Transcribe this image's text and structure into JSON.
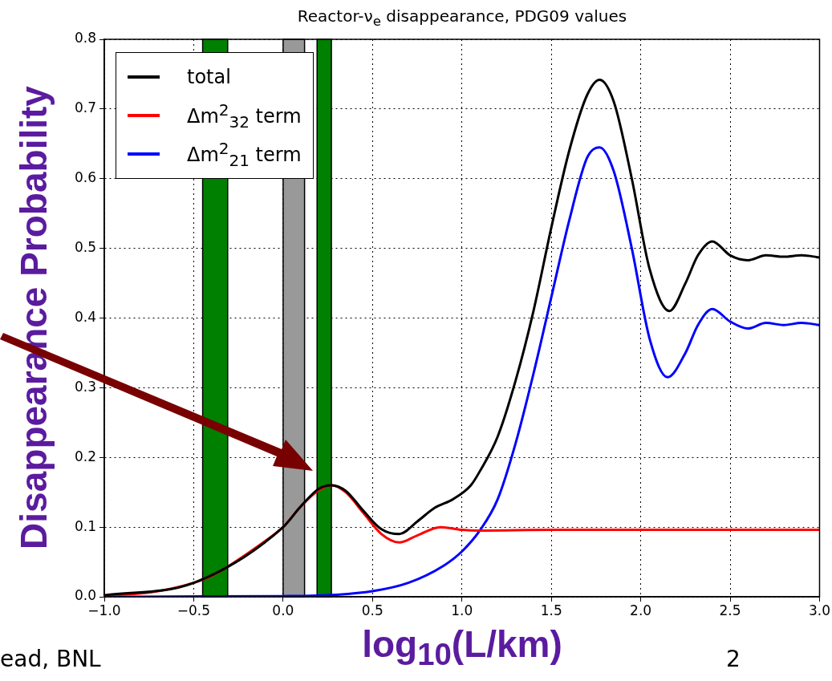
{
  "chart_data": {
    "type": "line",
    "title": "Reactor-ν$_{e}$ disappearance, PDG09 values",
    "xlabel": "log$_{10}$(L/km)",
    "ylabel": "Disappearance Probability",
    "xlim": [
      -1,
      3
    ],
    "ylim": [
      0,
      0.8
    ],
    "xticks": [
      {
        "value": -1,
        "label": "−1.0"
      },
      {
        "value": -0.5,
        "label": "−0.5"
      },
      {
        "value": 0,
        "label": "0.0"
      },
      {
        "value": 0.5,
        "label": "0.5"
      },
      {
        "value": 1,
        "label": "1.0"
      },
      {
        "value": 1.5,
        "label": "1.5"
      },
      {
        "value": 2,
        "label": "2.0"
      },
      {
        "value": 2.5,
        "label": "2.5"
      },
      {
        "value": 3,
        "label": "3.0"
      }
    ],
    "yticks": [
      {
        "value": 0,
        "label": "0.0"
      },
      {
        "value": 0.1,
        "label": "0.1"
      },
      {
        "value": 0.2,
        "label": "0.2"
      },
      {
        "value": 0.3,
        "label": "0.3"
      },
      {
        "value": 0.4,
        "label": "0.4"
      },
      {
        "value": 0.5,
        "label": "0.5"
      },
      {
        "value": 0.6,
        "label": "0.6"
      },
      {
        "value": 0.7,
        "label": "0.7"
      },
      {
        "value": 0.8,
        "label": "0.8"
      }
    ],
    "grid": true,
    "legend": "top left",
    "marker": "none",
    "line_style": "solid",
    "bands": [
      {
        "axis": "x",
        "from": -0.45,
        "to": -0.31,
        "color": "#008000"
      },
      {
        "axis": "x",
        "from": 0,
        "to": 0.12,
        "color": "#999999"
      },
      {
        "axis": "x",
        "from": 0.19,
        "to": 0.27,
        "color": "#008000"
      }
    ],
    "series": [
      {
        "name": "total",
        "color": "#000000",
        "x": [
          -1,
          -0.5,
          0,
          0.1,
          0.2,
          0.27,
          0.35,
          0.45,
          0.55,
          0.65,
          0.75,
          0.85,
          0.95,
          1.05,
          1.1,
          1.2,
          1.3,
          1.4,
          1.5,
          1.6,
          1.7,
          1.77,
          1.85,
          1.95,
          2.05,
          2.16,
          2.25,
          2.32,
          2.4,
          2.5,
          2.6,
          2.7,
          2.8,
          2.9,
          3
        ],
        "values": [
          0.002,
          0.02,
          0.1,
          0.13,
          0.155,
          0.16,
          0.152,
          0.123,
          0.097,
          0.09,
          0.108,
          0.128,
          0.14,
          0.16,
          0.18,
          0.23,
          0.31,
          0.41,
          0.53,
          0.64,
          0.72,
          0.742,
          0.71,
          0.6,
          0.47,
          0.41,
          0.45,
          0.49,
          0.51,
          0.49,
          0.483,
          0.49,
          0.488,
          0.49,
          0.487
        ]
      },
      {
        "name": "Δm$^{2}$$_{32}$ term",
        "color": "#ff0000",
        "x": [
          -1,
          -0.75,
          -0.5,
          -0.4,
          -0.3,
          -0.2,
          -0.1,
          0,
          0.1,
          0.2,
          0.27,
          0.35,
          0.45,
          0.55,
          0.65,
          0.75,
          0.88,
          1,
          1.1,
          1.5,
          3
        ],
        "values": [
          0.002,
          0.006,
          0.02,
          0.03,
          0.045,
          0.062,
          0.08,
          0.1,
          0.13,
          0.153,
          0.16,
          0.15,
          0.12,
          0.09,
          0.078,
          0.088,
          0.1,
          0.096,
          0.095,
          0.096,
          0.096
        ]
      },
      {
        "name": "Δm$^{2}$$_{21}$ term",
        "color": "#0000ff",
        "x": [
          -1,
          0,
          0.3,
          0.5,
          0.7,
          0.9,
          1,
          1.1,
          1.2,
          1.3,
          1.4,
          1.5,
          1.6,
          1.7,
          1.77,
          1.85,
          1.95,
          2.05,
          2.15,
          2.25,
          2.32,
          2.4,
          2.5,
          2.6,
          2.7,
          2.8,
          2.9,
          3
        ],
        "values": [
          0,
          0.001,
          0.003,
          0.008,
          0.02,
          0.045,
          0.065,
          0.095,
          0.14,
          0.22,
          0.32,
          0.43,
          0.54,
          0.63,
          0.645,
          0.61,
          0.5,
          0.37,
          0.315,
          0.35,
          0.39,
          0.413,
          0.395,
          0.385,
          0.393,
          0.39,
          0.393,
          0.39
        ]
      }
    ],
    "annotations": [
      "ead, BNL",
      "2"
    ]
  }
}
